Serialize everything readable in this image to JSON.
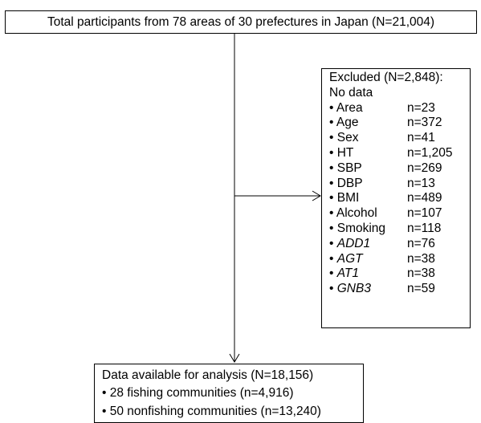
{
  "flowchart": {
    "top_box": "Total participants from 78 areas of 30 prefectures in Japan (N=21,004)",
    "excluded": {
      "title": "Excluded (N=2,848):",
      "subtitle": "No data",
      "items": [
        {
          "name": "Area",
          "count": "n=23",
          "italic": false
        },
        {
          "name": "Age",
          "count": "n=372",
          "italic": false
        },
        {
          "name": "Sex",
          "count": "n=41",
          "italic": false
        },
        {
          "name": "HT",
          "count": "n=1,205",
          "italic": false
        },
        {
          "name": "SBP",
          "count": "n=269",
          "italic": false
        },
        {
          "name": "DBP",
          "count": "n=13",
          "italic": false
        },
        {
          "name": "BMI",
          "count": "n=489",
          "italic": false
        },
        {
          "name": "Alcohol",
          "count": "n=107",
          "italic": false
        },
        {
          "name": "Smoking",
          "count": "n=118",
          "italic": false
        },
        {
          "name": "ADD1",
          "count": "n=76",
          "italic": true
        },
        {
          "name": "AGT",
          "count": "n=38",
          "italic": true
        },
        {
          "name": "AT1",
          "count": "n=38",
          "italic": true
        },
        {
          "name": "GNB3",
          "count": "n=59",
          "italic": true
        }
      ]
    },
    "final_box": {
      "title": "Data available for analysis (N=18,156)",
      "lines": [
        "• 28 fishing communities (n=4,916)",
        "• 50 nonfishing communities (n=13,240)"
      ]
    },
    "bullet": "• "
  }
}
